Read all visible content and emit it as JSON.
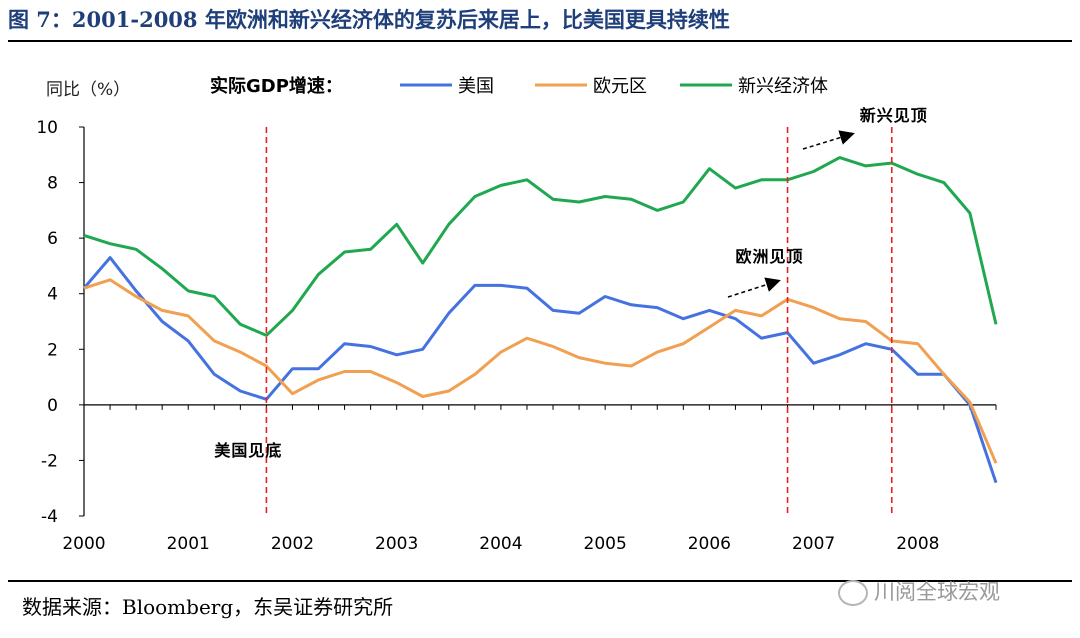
{
  "header": {
    "title": "图 7：2001-2008 年欧洲和新兴经济体的复苏后来居上，比美国更具持续性"
  },
  "footer": {
    "source": "数据来源：Bloomberg，东吴证券研究所",
    "watermark": "川阅全球宏观"
  },
  "colors": {
    "us": "#4472e0",
    "euro": "#f0a050",
    "emerging": "#1fa84f",
    "marker": "#e82020"
  },
  "chart_data": {
    "type": "line",
    "title": "",
    "ylabel": "同比（%）",
    "xlabel": "",
    "legend_title": "实际GDP增速：",
    "legend_position": "top",
    "ylim": [
      -4,
      10
    ],
    "yticks": [
      -4,
      -2,
      0,
      2,
      4,
      6,
      8,
      10
    ],
    "xlim": [
      2000,
      2008.75
    ],
    "xticks": [
      2000,
      2001,
      2002,
      2003,
      2004,
      2005,
      2006,
      2007,
      2008
    ],
    "xtick_labels": [
      "2000",
      "2001",
      "2002",
      "2003",
      "2004",
      "2005",
      "2006",
      "2007",
      "2008"
    ],
    "x": [
      2000,
      2000.25,
      2000.5,
      2000.75,
      2001,
      2001.25,
      2001.5,
      2001.75,
      2002,
      2002.25,
      2002.5,
      2002.75,
      2003,
      2003.25,
      2003.5,
      2003.75,
      2004,
      2004.25,
      2004.5,
      2004.75,
      2005,
      2005.25,
      2005.5,
      2005.75,
      2006,
      2006.25,
      2006.5,
      2006.75,
      2007,
      2007.25,
      2007.5,
      2007.75,
      2008,
      2008.25,
      2008.5,
      2008.75
    ],
    "series": [
      {
        "name": "美国",
        "key": "us",
        "values": [
          4.2,
          5.3,
          4.1,
          3.0,
          2.3,
          1.1,
          0.5,
          0.2,
          1.3,
          1.3,
          2.2,
          2.1,
          1.8,
          2.0,
          3.3,
          4.3,
          4.3,
          4.2,
          3.4,
          3.3,
          3.9,
          3.6,
          3.5,
          3.1,
          3.4,
          3.1,
          2.4,
          2.6,
          1.5,
          1.8,
          2.2,
          2.0,
          1.1,
          1.1,
          0.0,
          -2.8
        ]
      },
      {
        "name": "欧元区",
        "key": "euro",
        "values": [
          4.2,
          4.5,
          3.9,
          3.4,
          3.2,
          2.3,
          1.9,
          1.4,
          0.4,
          0.9,
          1.2,
          1.2,
          0.8,
          0.3,
          0.5,
          1.1,
          1.9,
          2.4,
          2.1,
          1.7,
          1.5,
          1.4,
          1.9,
          2.2,
          2.8,
          3.4,
          3.2,
          3.8,
          3.5,
          3.1,
          3.0,
          2.3,
          2.2,
          1.1,
          0.1,
          -2.1
        ]
      },
      {
        "name": "新兴经济体",
        "key": "emerging",
        "values": [
          6.1,
          5.8,
          5.6,
          4.9,
          4.1,
          3.9,
          2.9,
          2.5,
          3.4,
          4.7,
          5.5,
          5.6,
          6.5,
          5.1,
          6.5,
          7.5,
          7.9,
          8.1,
          7.4,
          7.3,
          7.5,
          7.4,
          7.0,
          7.3,
          8.5,
          7.8,
          8.1,
          8.1,
          8.4,
          8.9,
          8.6,
          8.7,
          8.3,
          8.0,
          6.9,
          2.9
        ]
      }
    ],
    "reference_lines": [
      {
        "x": 2001.75,
        "label": "美国见底"
      },
      {
        "x": 2006.75,
        "label": "欧洲见顶"
      },
      {
        "x": 2007.75,
        "label": "新兴见顶"
      }
    ]
  }
}
